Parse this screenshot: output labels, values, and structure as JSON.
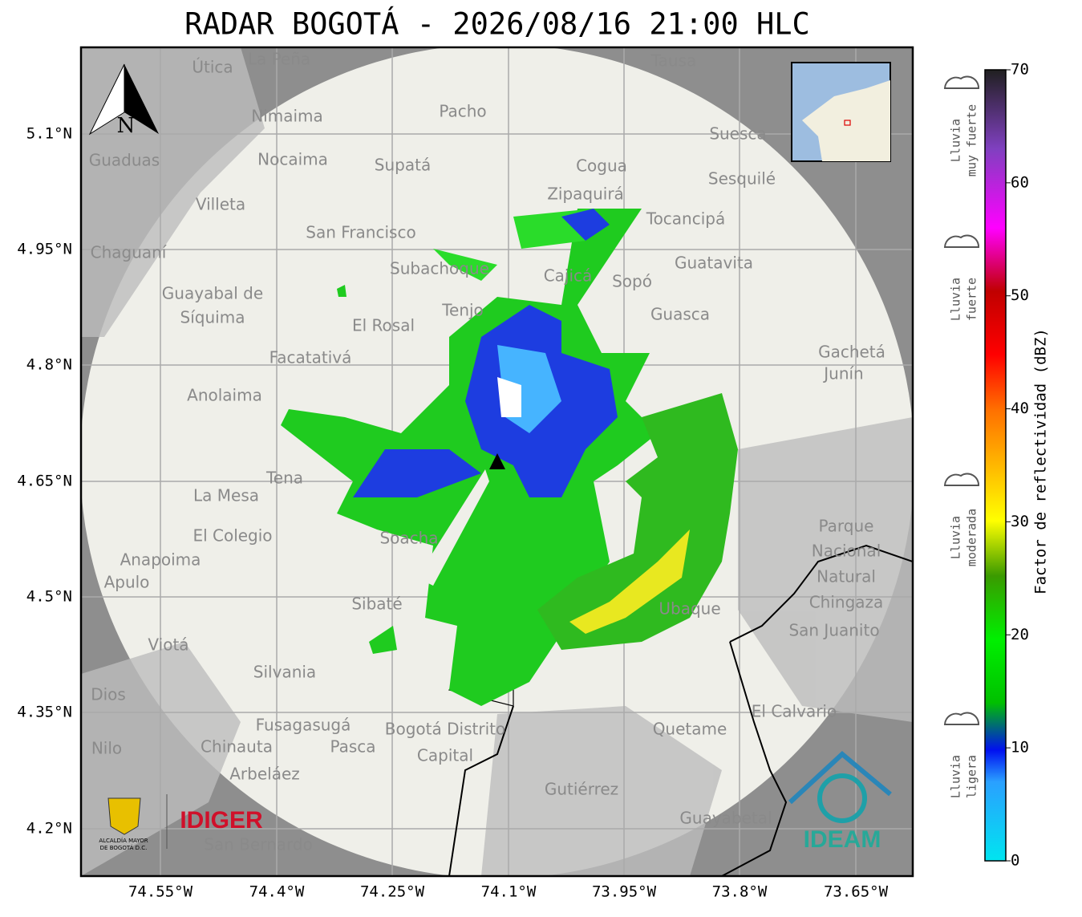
{
  "title": "RADAR BOGOTÁ - 2026/08/16 21:00 HLC",
  "map": {
    "lat_labels": [
      "5.1°N",
      "4.95°N",
      "4.8°N",
      "4.65°N",
      "4.5°N",
      "4.35°N",
      "4.2°N"
    ],
    "lon_labels": [
      "74.55°W",
      "74.4°W",
      "74.25°W",
      "74.1°W",
      "73.95°W",
      "73.8°W",
      "73.65°W"
    ],
    "north": "N",
    "places": [
      "La Peña",
      "Útica",
      "Tausa",
      "Pacho",
      "Nimaima",
      "Guaduas",
      "Nocaima",
      "Supatá",
      "Cogua",
      "Suesca",
      "Sesquilé",
      "Zipaquirá",
      "Villeta",
      "Tocancipá",
      "San Francisco",
      "Chaguaní",
      "Guatavita",
      "Subachoque",
      "Cajicá",
      "Sopó",
      "Guayabal de",
      "Síquima",
      "Tenjo",
      "Guasca",
      "El Rosal",
      "Facatativá",
      "Gachetá",
      "Junín",
      "Anolaima",
      "Tena",
      "La Mesa",
      "Soacha",
      "El Colegio",
      "Anapoima",
      "Apulo",
      "Sibaté",
      "Viotá",
      "Silvania",
      "Ubaque",
      "San Juanito",
      "El Calvario",
      "Dios",
      "Fusagasugá",
      "Pasca",
      "Nilo",
      "Chinauta",
      "Arbeláez",
      "Quetame",
      "Gutiérrez",
      "Guayabetal",
      "San Bernardo",
      "Parque",
      "Nacional",
      "Natural",
      "Chingaza",
      "Bogotá Distrito",
      "Capital"
    ],
    "logos": {
      "idiger": "IDIGER",
      "alcaldia": "ALCALDÍA MAYOR",
      "alcaldia2": "DE BOGOTÁ D.C.",
      "ideam": "IDEAM"
    }
  },
  "colorbar": {
    "label": "Factor de reflectividad (dBZ)",
    "range": [
      0,
      70
    ],
    "ticks": [
      0,
      10,
      20,
      30,
      40,
      50,
      60,
      70
    ],
    "legend": [
      [
        "Lluvia",
        "muy fuerte"
      ],
      [
        "Lluvia",
        "fuerte"
      ],
      [
        "Lluvia",
        "moderada"
      ],
      [
        "Lluvia",
        "ligera"
      ]
    ]
  }
}
